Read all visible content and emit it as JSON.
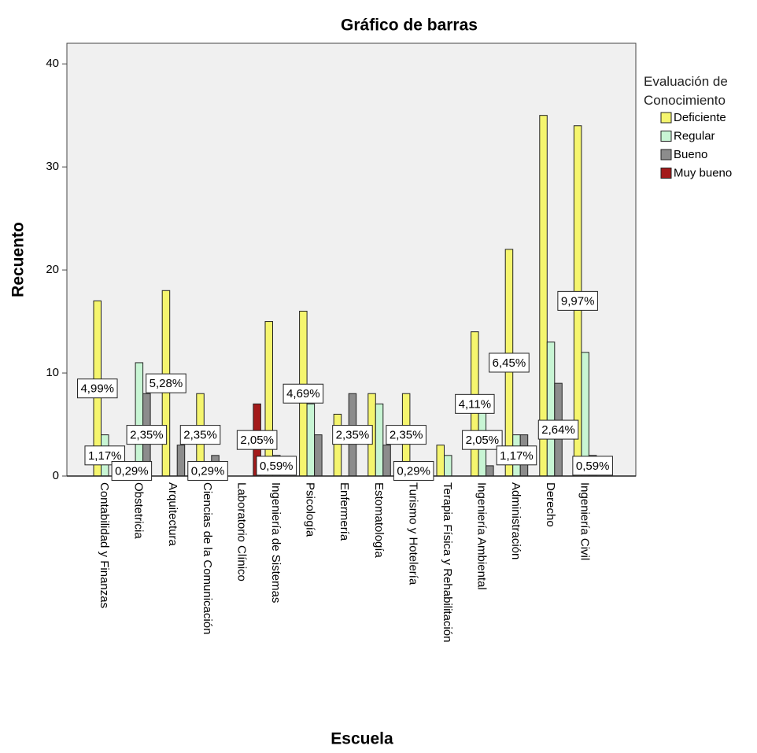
{
  "chart_data": {
    "type": "bar",
    "title": "Gráfico de barras",
    "x_label": "Escuela",
    "y_label": "Recuento",
    "legend_title": "Evaluación de Conocimiento",
    "categories": [
      "Contabilidad y Finanzas",
      "Obstetricia",
      "Arquitectura",
      "Ciencias de la Comunicación",
      "Laboratorio Clínico",
      "Ingeniería de Sistemas",
      "Psicología",
      "Enfermería",
      "Estomatología",
      "Turismo y Hotelería",
      "Terapia Física y Rehabilitación",
      "Ingeniería Ambiental",
      "Administración",
      "Derecho",
      "Ingeniería Civil"
    ],
    "series": [
      {
        "name": "Deficiente",
        "color": "#f5f56e",
        "values": [
          17,
          1,
          18,
          8,
          0,
          15,
          16,
          6,
          8,
          8,
          3,
          14,
          22,
          35,
          34
        ]
      },
      {
        "name": "Regular",
        "color": "#c8f5d4",
        "values": [
          4,
          11,
          0,
          1,
          0,
          2,
          7,
          0,
          7,
          1,
          2,
          7,
          4,
          13,
          12
        ]
      },
      {
        "name": "Bueno",
        "color": "#8c8c8c",
        "values": [
          0,
          8,
          3,
          2,
          0,
          0,
          4,
          8,
          3,
          0,
          0,
          1,
          4,
          9,
          2
        ]
      },
      {
        "name": "Muy bueno",
        "color": "#a31a1a",
        "values": [
          0,
          0,
          0,
          0,
          7,
          0,
          0,
          0,
          0,
          0,
          0,
          0,
          0,
          0,
          0
        ]
      }
    ],
    "ylim": [
      0,
      42
    ],
    "yticks": [
      0,
      10,
      20,
      30,
      40
    ],
    "grid": false,
    "legend": "right",
    "annotations": [
      {
        "text": "4,99%",
        "category": "Contabilidad y Finanzas",
        "series": "Deficiente"
      },
      {
        "text": "1,17%",
        "category": "Contabilidad y Finanzas",
        "series": "Regular"
      },
      {
        "text": "0,29%",
        "category": "Obstetricia",
        "series": "Deficiente"
      },
      {
        "text": "2,35%",
        "category": "Obstetricia",
        "series": "Bueno"
      },
      {
        "text": "5,28%",
        "category": "Arquitectura",
        "series": "Deficiente"
      },
      {
        "text": "2,35%",
        "category": "Ciencias de la Comunicación",
        "series": "Deficiente"
      },
      {
        "text": "0,29%",
        "category": "Ciencias de la Comunicación",
        "series": "Regular"
      },
      {
        "text": "2,05%",
        "category": "Laboratorio Clínico",
        "series": "Muy bueno"
      },
      {
        "text": "0,59%",
        "category": "Ingeniería de Sistemas",
        "series": "Regular"
      },
      {
        "text": "4,69%",
        "category": "Psicología",
        "series": "Deficiente"
      },
      {
        "text": "2,35%",
        "category": "Enfermería",
        "series": "Bueno"
      },
      {
        "text": "2,35%",
        "category": "Turismo y Hotelería",
        "series": "Deficiente"
      },
      {
        "text": "0,29%",
        "category": "Turismo y Hotelería",
        "series": "Regular"
      },
      {
        "text": "4,11%",
        "category": "Ingeniería Ambiental",
        "series": "Deficiente"
      },
      {
        "text": "2,05%",
        "category": "Ingeniería Ambiental",
        "series": "Regular"
      },
      {
        "text": "6,45%",
        "category": "Administración",
        "series": "Deficiente"
      },
      {
        "text": "1,17%",
        "category": "Administración",
        "series": "Regular"
      },
      {
        "text": "2,64%",
        "category": "Derecho",
        "series": "Bueno"
      },
      {
        "text": "9,97%",
        "category": "Ingeniería Civil",
        "series": "Deficiente"
      },
      {
        "text": "0,59%",
        "category": "Ingeniería Civil",
        "series": "Bueno"
      }
    ]
  }
}
